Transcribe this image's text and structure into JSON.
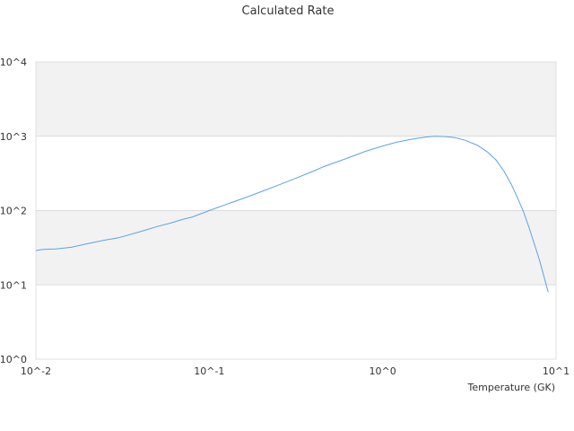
{
  "chart_data": {
    "type": "line",
    "title": "Calculated Rate",
    "xlabel": "Temperature (GK)",
    "ylabel": "",
    "x_scale": "log",
    "y_scale": "log",
    "xlim": [
      0.01,
      10
    ],
    "ylim": [
      1,
      10000
    ],
    "x_ticks": [
      "10^-2",
      "10^-1",
      "10^0",
      "10^1"
    ],
    "y_ticks": [
      "10^0",
      "10^1",
      "10^2",
      "10^3",
      "10^4"
    ],
    "grid": "horizontal bands",
    "band_color": "#f2f2f2",
    "grid_color": "#dddddd",
    "series": [
      {
        "color": "#5aa3e8",
        "x": [
          0.01,
          0.011,
          0.013,
          0.016,
          0.02,
          0.025,
          0.03,
          0.04,
          0.05,
          0.06,
          0.07,
          0.08,
          0.1,
          0.13,
          0.16,
          0.2,
          0.25,
          0.3,
          0.4,
          0.45,
          0.5,
          0.6,
          0.7,
          0.8,
          1.0,
          1.2,
          1.5,
          1.8,
          2.0,
          2.3,
          2.6,
          3.0,
          3.5,
          4.0,
          4.5,
          5.0,
          5.5,
          6.0,
          6.5,
          7.0,
          8.0,
          9.0
        ],
        "y": [
          29,
          30,
          30.5,
          32,
          36,
          40,
          43,
          52,
          61,
          68,
          76,
          82,
          100,
          125,
          148,
          180,
          220,
          260,
          340,
          385,
          420,
          490,
          560,
          630,
          740,
          830,
          920,
          980,
          1000,
          990,
          960,
          880,
          760,
          620,
          480,
          340,
          230,
          148,
          96,
          58,
          22,
          8
        ]
      }
    ]
  }
}
